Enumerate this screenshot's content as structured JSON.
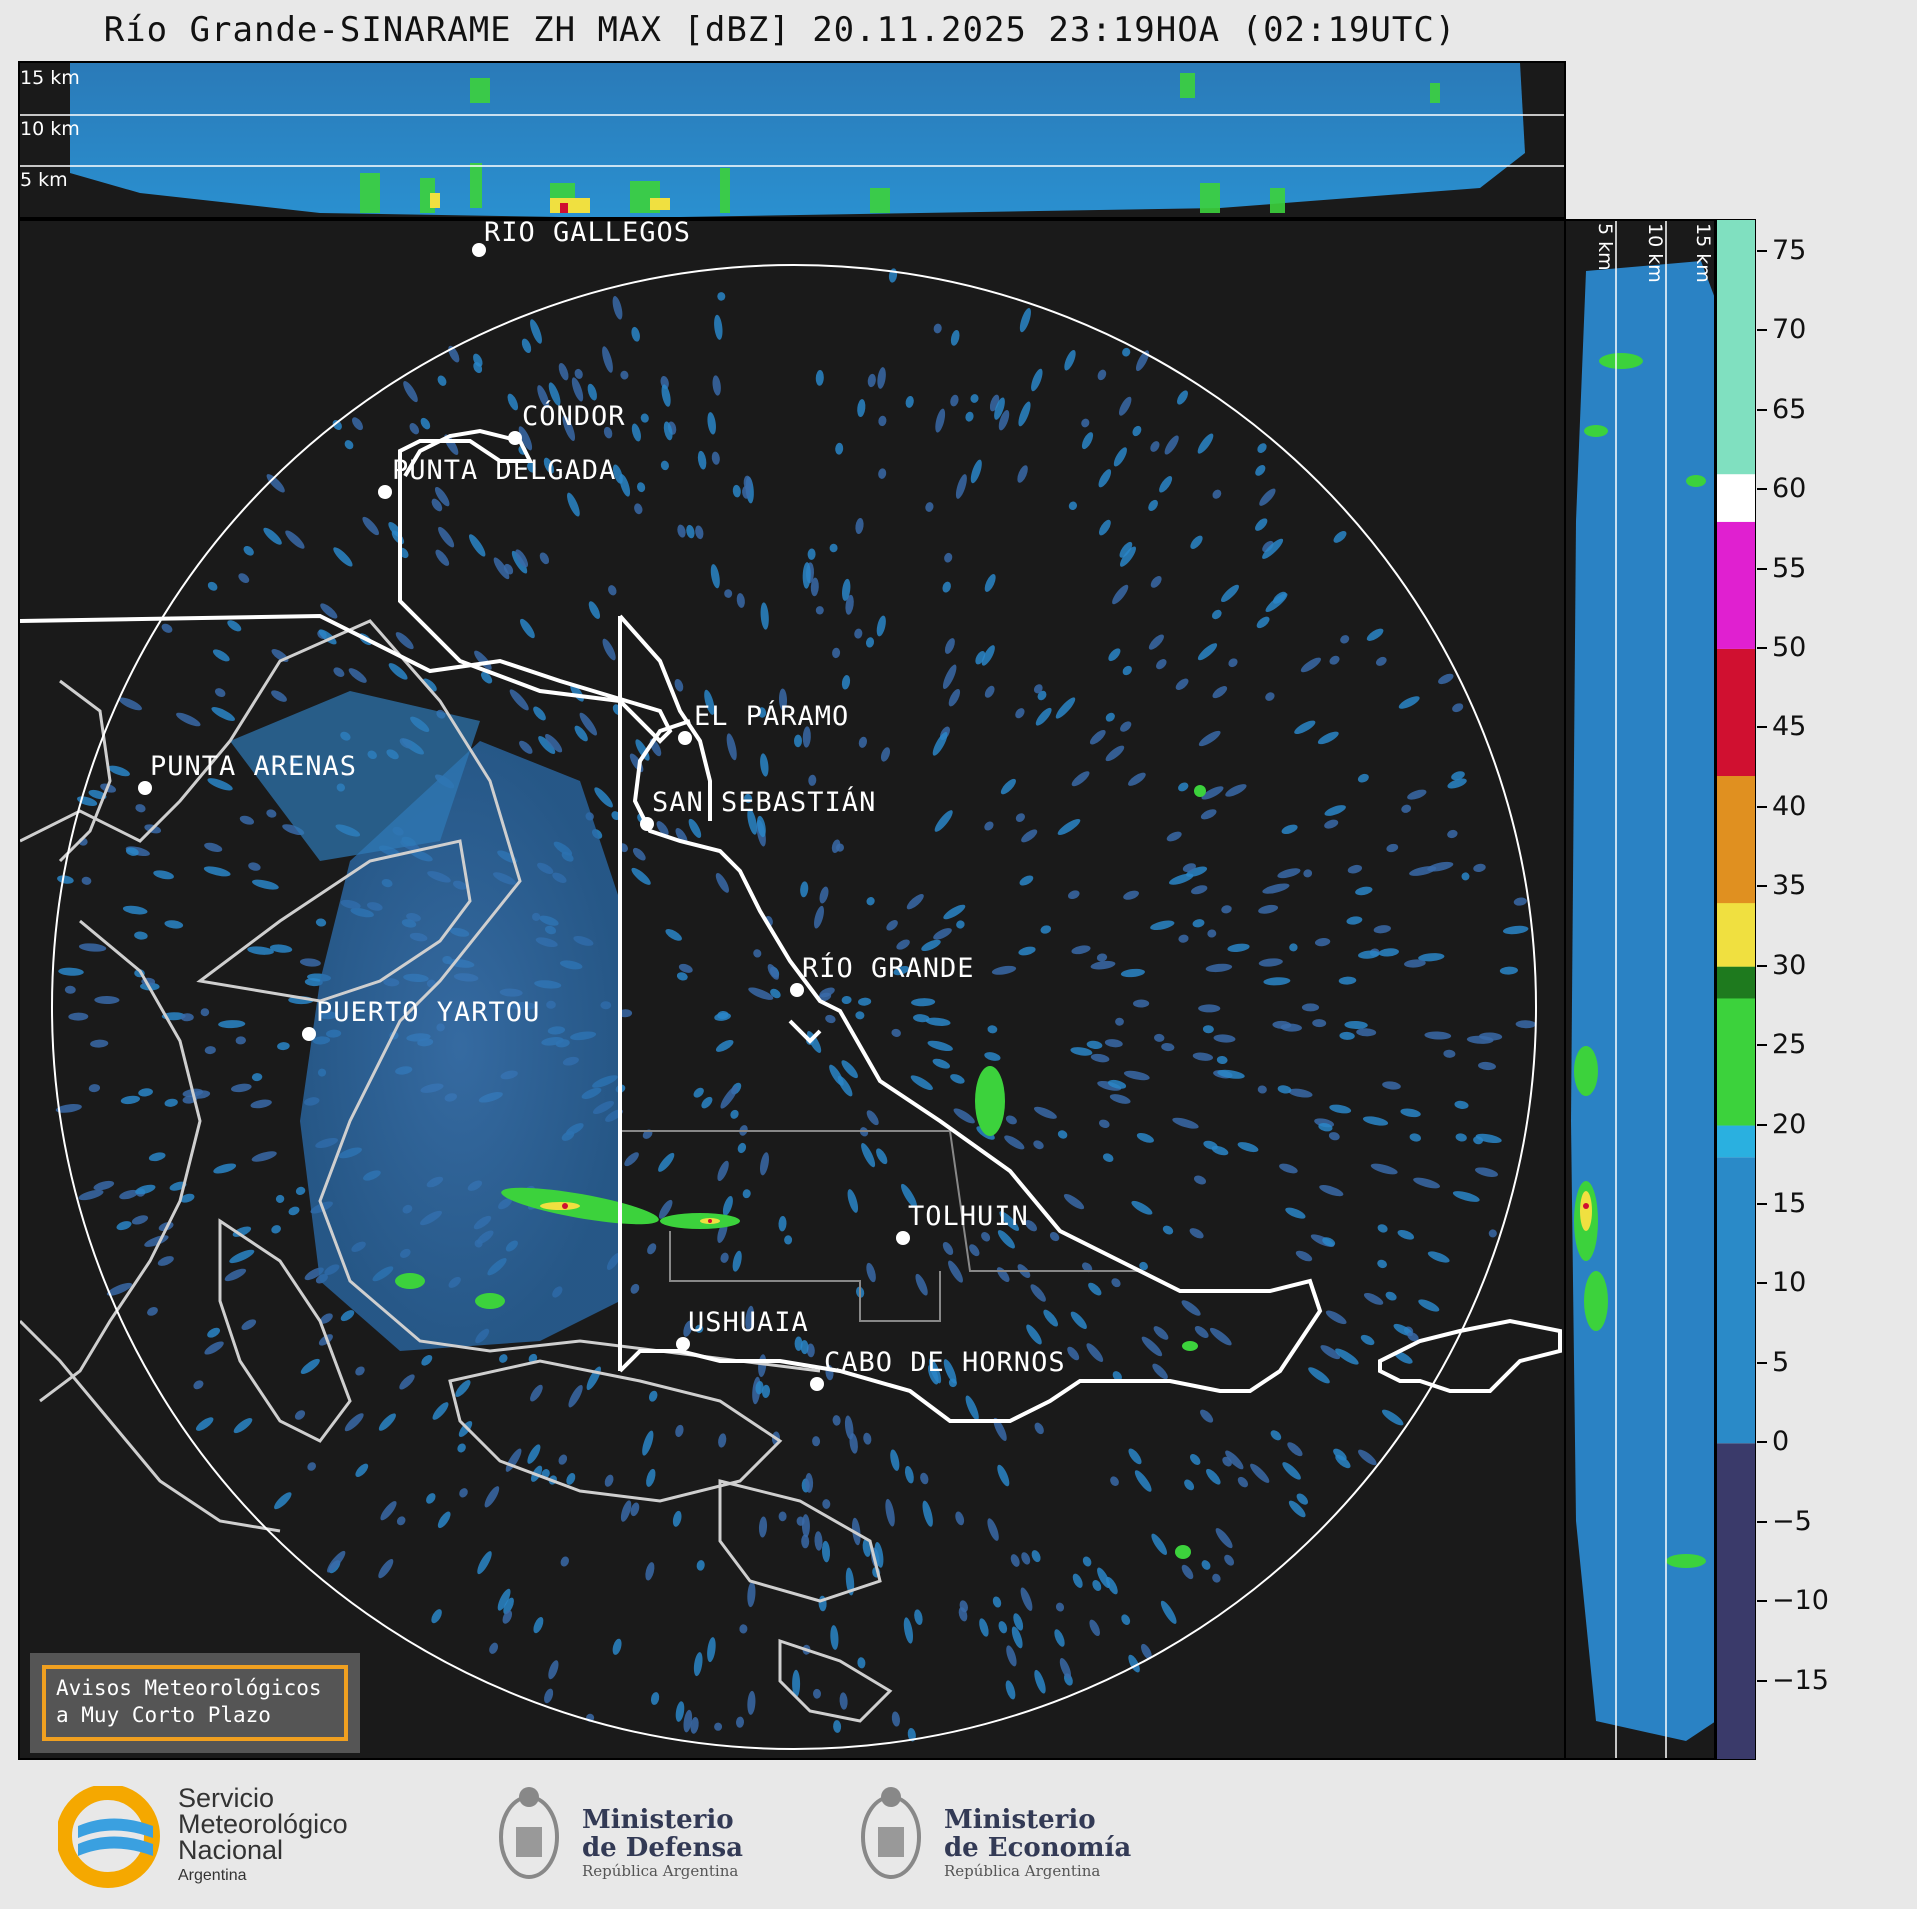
{
  "title": "Río Grande-SINARAME ZH MAX [dBZ] 20.11.2025 23:19HOA (02:19UTC)",
  "top_panel": {
    "altitude_labels": [
      "15 km",
      "10 km",
      "5 km"
    ]
  },
  "side_panel": {
    "altitude_labels": [
      "5 km",
      "10 km",
      "15 km"
    ]
  },
  "cities": [
    {
      "name": "RÍO GALLEGOS"
    },
    {
      "name": "CÓNDOR"
    },
    {
      "name": "PUNTA DELGADA"
    },
    {
      "name": "EL PÁRAMO"
    },
    {
      "name": "SAN SEBASTIÁN"
    },
    {
      "name": "PUNTA ARENAS"
    },
    {
      "name": "RÍO GRANDE"
    },
    {
      "name": "PUERTO YARTOU"
    },
    {
      "name": "TOLHUIN"
    },
    {
      "name": "USHUAIA"
    },
    {
      "name": "CABO DE HORNOS"
    }
  ],
  "avisos": {
    "line1": "Avisos Meteorológicos",
    "line2": "a Muy Corto Plazo"
  },
  "colorbar": {
    "unit": "dBZ",
    "range": [
      -20,
      77
    ],
    "ticks": [
      "75",
      "70",
      "65",
      "60",
      "55",
      "50",
      "45",
      "40",
      "35",
      "30",
      "25",
      "20",
      "15",
      "10",
      "5",
      "0",
      "−5",
      "−10",
      "−15"
    ],
    "colors": {
      "low": "#3a3a6a",
      "blue": "#2a8ac8",
      "cyan": "#2ab0e0",
      "green": "#3cd23c",
      "dark_green": "#1e7a1e",
      "yellow": "#f0e040",
      "orange": "#e09020",
      "red": "#d01030",
      "magenta": "#e020d0",
      "white": "#ffffff",
      "mint": "#80e0c0"
    }
  },
  "footer": {
    "smn": {
      "line1": "Servicio",
      "line2": "Meteorológico",
      "line3": "Nacional",
      "line4": "Argentina"
    },
    "defensa": {
      "line1": "Ministerio",
      "line2": "de Defensa",
      "line3": "República Argentina"
    },
    "economia": {
      "line1": "Ministerio",
      "line2": "de Economía",
      "line3": "República Argentina"
    }
  }
}
